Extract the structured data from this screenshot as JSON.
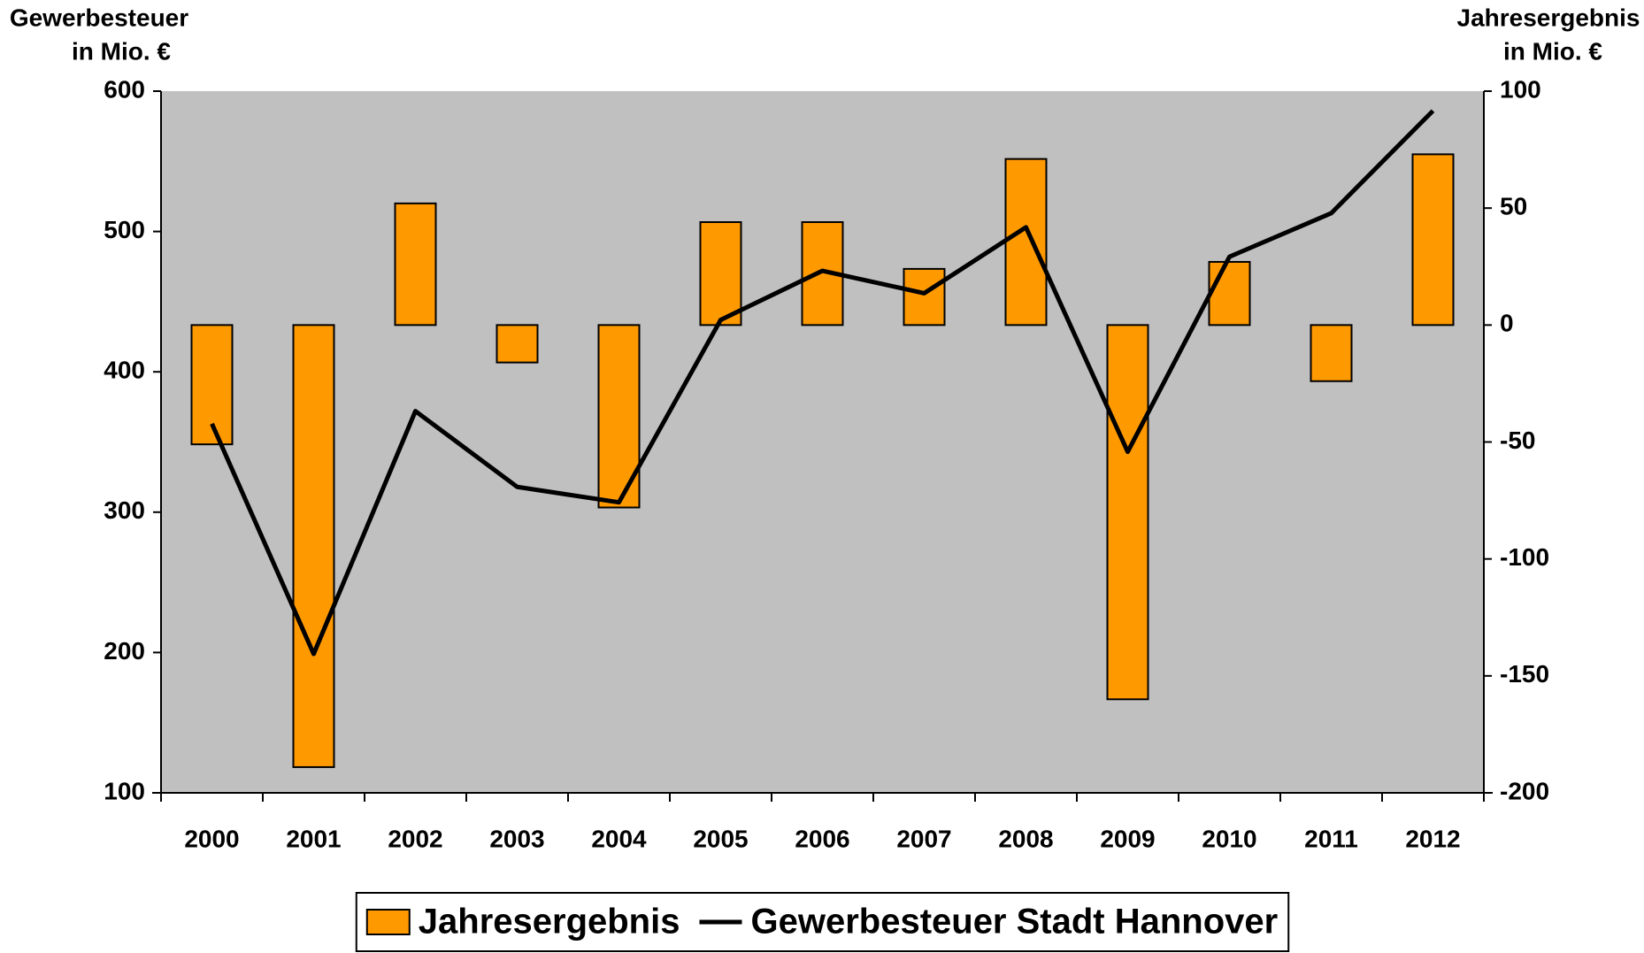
{
  "chart_data": {
    "type": "bar-line",
    "y_label": [
      "Gewerbesteuer",
      "in Mio. €"
    ],
    "y2_label": [
      "Jahresergebnis",
      "in Mio. €"
    ],
    "categories": [
      "2000",
      "2001",
      "2002",
      "2003",
      "2004",
      "2005",
      "2006",
      "2007",
      "2008",
      "2009",
      "2010",
      "2011",
      "2012"
    ],
    "series": [
      {
        "name": "Jahresergebnis",
        "type": "bar",
        "axis": "y2",
        "color": "#ff9900",
        "values": [
          -51,
          -189,
          52,
          -16,
          -78,
          44,
          44,
          24,
          71,
          -160,
          27,
          -24,
          73
        ]
      },
      {
        "name": "Gewerbesteuer Stadt Hannover",
        "type": "line",
        "axis": "y",
        "color": "#000000",
        "values": [
          363,
          199,
          372,
          318,
          307,
          437,
          472,
          456,
          503,
          343,
          482,
          513,
          586
        ]
      }
    ],
    "ylim": [
      100,
      600
    ],
    "yticks": [
      100,
      200,
      300,
      400,
      500,
      600
    ],
    "y2lim": [
      -200,
      100
    ],
    "y2ticks": [
      -200,
      -150,
      -100,
      -50,
      0,
      50,
      100
    ],
    "plot_background": "#c0c0c0",
    "legend": "bottom"
  }
}
